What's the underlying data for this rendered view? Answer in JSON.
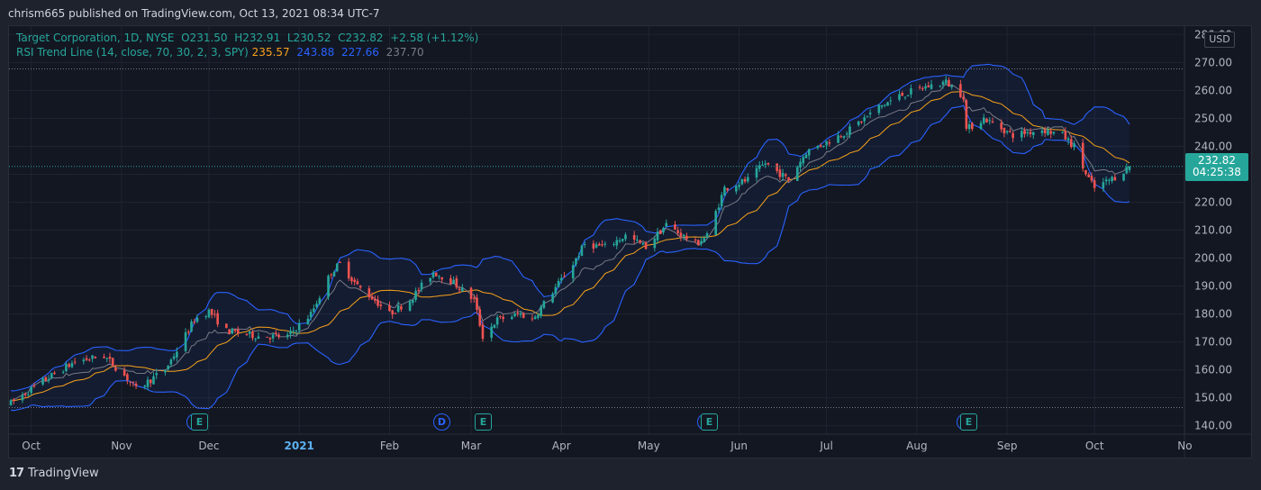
{
  "header": {
    "published_text": "chrism665 published on TradingView.com, Oct 13, 2021 08:34 UTC-7"
  },
  "legend": {
    "symbol_line": "Target Corporation, 1D, NYSE",
    "ohlc": {
      "open": "O231.50",
      "high": "H232.91",
      "low": "L230.52",
      "close": "C232.82",
      "change": "+2.58 (+1.12%)"
    },
    "indicator_name": "RSI Trend Line (14, close, 70, 30, 2, 3, SPY)",
    "indicator_values": [
      "235.57",
      "243.88",
      "227.66",
      "237.70"
    ]
  },
  "price_axis": {
    "currency": "USD",
    "last_price": "232.82",
    "countdown": "04:25:38",
    "ticks": [
      "280.00",
      "270.00",
      "260.00",
      "250.00",
      "240.00",
      "230.00",
      "220.00",
      "210.00",
      "200.00",
      "190.00",
      "180.00",
      "170.00",
      "160.00",
      "150.00",
      "140.00"
    ]
  },
  "time_axis": {
    "labels": [
      "Oct",
      "Nov",
      "Dec",
      "2021",
      "Feb",
      "Mar",
      "Apr",
      "May",
      "Jun",
      "Jul",
      "Aug",
      "Sep",
      "Oct",
      "No"
    ]
  },
  "event_markers": [
    {
      "type": "E",
      "label": "E"
    },
    {
      "type": "D",
      "label": "D"
    },
    {
      "type": "E",
      "label": "E"
    },
    {
      "type": "E",
      "label": "E"
    },
    {
      "type": "E",
      "label": "E"
    }
  ],
  "footer": {
    "brand": "TradingView",
    "logo_text": "17"
  },
  "colors": {
    "up": "#26a69a",
    "down": "#ef5350",
    "band": "#2962ff",
    "basis": "#f7a21b",
    "rsi_line": "#787b86",
    "background": "#131722"
  },
  "chart_data": {
    "type": "candlestick",
    "title": "Target Corporation, 1D, NYSE",
    "ylim": [
      137,
      283
    ],
    "reference_lines": [
      267.7,
      146.5
    ],
    "grid": true,
    "x_range": [
      "2020-09-24",
      "2021-10-13"
    ],
    "anchors": [
      [
        "2020-09-24",
        148
      ],
      [
        "2020-10-05",
        156
      ],
      [
        "2020-10-16",
        163
      ],
      [
        "2020-10-26",
        165
      ],
      [
        "2020-11-03",
        157
      ],
      [
        "2020-11-06",
        153
      ],
      [
        "2020-11-16",
        160
      ],
      [
        "2020-11-20",
        167
      ],
      [
        "2020-11-26",
        178
      ],
      [
        "2020-12-01",
        181
      ],
      [
        "2020-12-07",
        174
      ],
      [
        "2020-12-18",
        172
      ],
      [
        "2020-12-28",
        172
      ],
      [
        "2021-01-05",
        180
      ],
      [
        "2021-01-12",
        195
      ],
      [
        "2021-01-15",
        198
      ],
      [
        "2021-01-21",
        190
      ],
      [
        "2021-01-27",
        185
      ],
      [
        "2021-02-01",
        180
      ],
      [
        "2021-02-08",
        185
      ],
      [
        "2021-02-16",
        195
      ],
      [
        "2021-02-22",
        192
      ],
      [
        "2021-03-02",
        185
      ],
      [
        "2021-03-05",
        172
      ],
      [
        "2021-03-10",
        178
      ],
      [
        "2021-03-18",
        180
      ],
      [
        "2021-03-22",
        178
      ],
      [
        "2021-03-29",
        188
      ],
      [
        "2021-04-05",
        198
      ],
      [
        "2021-04-09",
        205
      ],
      [
        "2021-04-16",
        204
      ],
      [
        "2021-04-23",
        208
      ],
      [
        "2021-04-30",
        204
      ],
      [
        "2021-05-07",
        212
      ],
      [
        "2021-05-17",
        205
      ],
      [
        "2021-05-21",
        208
      ],
      [
        "2021-05-27",
        225
      ],
      [
        "2021-06-04",
        228
      ],
      [
        "2021-06-10",
        234
      ],
      [
        "2021-06-18",
        228
      ],
      [
        "2021-06-24",
        238
      ],
      [
        "2021-07-02",
        242
      ],
      [
        "2021-07-09",
        246
      ],
      [
        "2021-07-19",
        254
      ],
      [
        "2021-07-26",
        258
      ],
      [
        "2021-08-03",
        261
      ],
      [
        "2021-08-11",
        263
      ],
      [
        "2021-08-17",
        258
      ],
      [
        "2021-08-18",
        246
      ],
      [
        "2021-08-24",
        250
      ],
      [
        "2021-09-03",
        244
      ],
      [
        "2021-09-13",
        246
      ],
      [
        "2021-09-20",
        244
      ],
      [
        "2021-09-24",
        240
      ],
      [
        "2021-09-28",
        230
      ],
      [
        "2021-10-01",
        225
      ],
      [
        "2021-10-08",
        229
      ],
      [
        "2021-10-13",
        232.82
      ]
    ]
  }
}
